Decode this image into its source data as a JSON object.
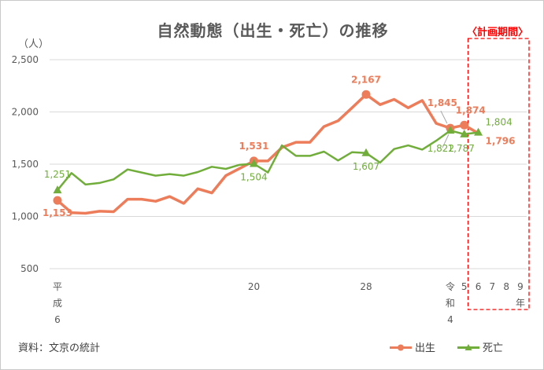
{
  "chart_data": {
    "type": "line",
    "title": "自然動態（出生・死亡）の推移",
    "y_unit": "（人）",
    "plan_label": "〈計画期間〉",
    "source": "資料：文京の統計",
    "ylim": [
      500,
      2500
    ],
    "yticks": [
      "2,500",
      "2,000",
      "1,500",
      "1,000",
      "500"
    ],
    "ytick_values": [
      2500,
      2000,
      1500,
      1000,
      500
    ],
    "grid": true,
    "legend_position": "bottom-right",
    "x": [
      "H6",
      "H7",
      "H8",
      "H9",
      "H10",
      "H11",
      "H12",
      "H13",
      "H14",
      "H15",
      "H16",
      "H17",
      "H18",
      "H19",
      "H20",
      "H21",
      "H22",
      "H23",
      "H24",
      "H25",
      "H26",
      "H27",
      "H28",
      "H29",
      "H30",
      "R1",
      "R2",
      "R3",
      "R4",
      "R5",
      "R6",
      "R7",
      "R8",
      "R9"
    ],
    "x_tick_labels": [
      {
        "index": 0,
        "lines": [
          "平",
          "成",
          "6"
        ]
      },
      {
        "index": 14,
        "lines": [
          "20"
        ]
      },
      {
        "index": 22,
        "lines": [
          "28"
        ]
      },
      {
        "index": 28,
        "lines": [
          "令",
          "和",
          "4"
        ]
      },
      {
        "index": 29,
        "lines": [
          "5"
        ]
      },
      {
        "index": 30,
        "lines": [
          "6"
        ]
      },
      {
        "index": 31,
        "lines": [
          "7"
        ]
      },
      {
        "index": 32,
        "lines": [
          "8"
        ]
      },
      {
        "index": 33,
        "lines": [
          "9",
          "年"
        ]
      }
    ],
    "series": [
      {
        "name": "出生",
        "color": "#ed7d5a",
        "marker": "circle",
        "values": [
          1153,
          1035,
          1030,
          1050,
          1045,
          1165,
          1165,
          1145,
          1190,
          1125,
          1265,
          1225,
          1390,
          1460,
          1531,
          1531,
          1660,
          1710,
          1710,
          1860,
          1915,
          2040,
          2167,
          2070,
          2120,
          2040,
          2110,
          1890,
          1845,
          1874,
          1796,
          null,
          null,
          null
        ],
        "data_labels": [
          {
            "index": 0,
            "text": "1,153"
          },
          {
            "index": 14,
            "text": "1,531"
          },
          {
            "index": 22,
            "text": "2,167"
          },
          {
            "index": 28,
            "text": "1,845"
          },
          {
            "index": 29,
            "text": "1,874"
          },
          {
            "index": 30,
            "text": "1,796"
          }
        ],
        "markers_at": [
          0,
          14,
          22,
          28,
          29
        ]
      },
      {
        "name": "死亡",
        "color": "#70ad3a",
        "marker": "triangle",
        "values": [
          1251,
          1415,
          1305,
          1320,
          1355,
          1450,
          1420,
          1390,
          1405,
          1390,
          1425,
          1475,
          1455,
          1495,
          1504,
          1420,
          1680,
          1580,
          1580,
          1620,
          1535,
          1615,
          1607,
          1515,
          1645,
          1680,
          1640,
          1725,
          1822,
          1787,
          1804,
          null,
          null,
          null
        ],
        "data_labels": [
          {
            "index": 0,
            "text": "1,251"
          },
          {
            "index": 14,
            "text": "1,504"
          },
          {
            "index": 22,
            "text": "1,607"
          },
          {
            "index": 28,
            "text": "1,822"
          },
          {
            "index": 29,
            "text": "1,787"
          },
          {
            "index": 30,
            "text": "1,804"
          }
        ],
        "markers_at": [
          0,
          14,
          22,
          28,
          29,
          30
        ]
      }
    ],
    "plan_period_from_index": 30,
    "plan_period_to_index": 33
  }
}
